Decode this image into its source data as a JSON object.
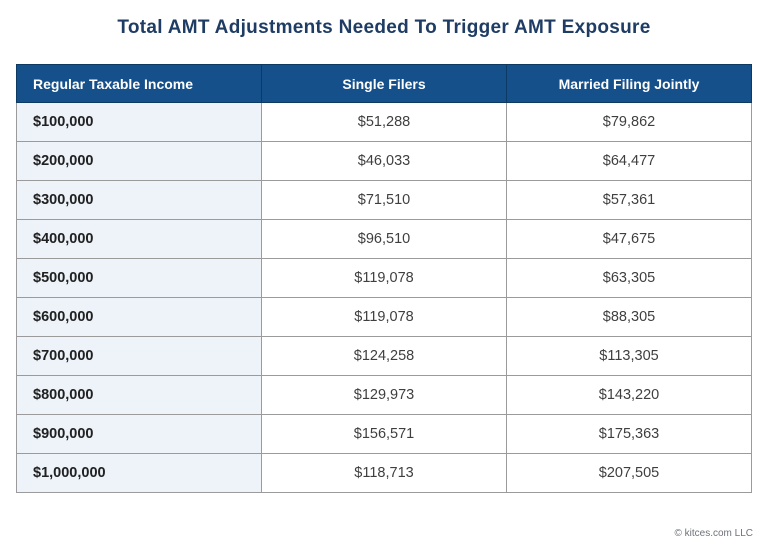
{
  "page": {
    "title": "Total AMT Adjustments Needed To Trigger AMT Exposure",
    "footer": "© kitces.com LLC"
  },
  "table": {
    "columns": [
      "Regular Taxable Income",
      "Single Filers",
      "Married Filing Jointly"
    ],
    "rows": [
      {
        "income": "$100,000",
        "single": "$51,288",
        "married": "$79,862"
      },
      {
        "income": "$200,000",
        "single": "$46,033",
        "married": "$64,477"
      },
      {
        "income": "$300,000",
        "single": "$71,510",
        "married": "$57,361"
      },
      {
        "income": "$400,000",
        "single": "$96,510",
        "married": "$47,675"
      },
      {
        "income": "$500,000",
        "single": "$119,078",
        "married": "$63,305"
      },
      {
        "income": "$600,000",
        "single": "$119,078",
        "married": "$88,305"
      },
      {
        "income": "$700,000",
        "single": "$124,258",
        "married": "$113,305"
      },
      {
        "income": "$800,000",
        "single": "$129,973",
        "married": "$143,220"
      },
      {
        "income": "$900,000",
        "single": "$156,571",
        "married": "$175,363"
      },
      {
        "income": "$1,000,000",
        "single": "$118,713",
        "married": "$207,505"
      }
    ]
  },
  "chart_data": {
    "type": "table",
    "title": "Total AMT Adjustments Needed To Trigger AMT Exposure",
    "categories": [
      "$100,000",
      "$200,000",
      "$300,000",
      "$400,000",
      "$500,000",
      "$600,000",
      "$700,000",
      "$800,000",
      "$900,000",
      "$1,000,000"
    ],
    "xlabel": "Regular Taxable Income",
    "ylabel": "Total AMT Adjustments Needed",
    "series": [
      {
        "name": "Single Filers",
        "values": [
          51288,
          46033,
          71510,
          96510,
          119078,
          119078,
          124258,
          129973,
          156571,
          118713
        ]
      },
      {
        "name": "Married Filing Jointly",
        "values": [
          79862,
          64477,
          57361,
          47675,
          63305,
          88305,
          113305,
          143220,
          175363,
          207505
        ]
      }
    ]
  },
  "colors": {
    "header_bg": "#15508b",
    "header_text": "#ffffff",
    "header_divider": "#0d3a63",
    "title_text": "#1e3c64",
    "row_label_bg": "#edf3f9",
    "label_text": "#212121",
    "value_text": "#3f3f3f",
    "border": "#9b9b9b",
    "footer_text": "#6d7278"
  }
}
